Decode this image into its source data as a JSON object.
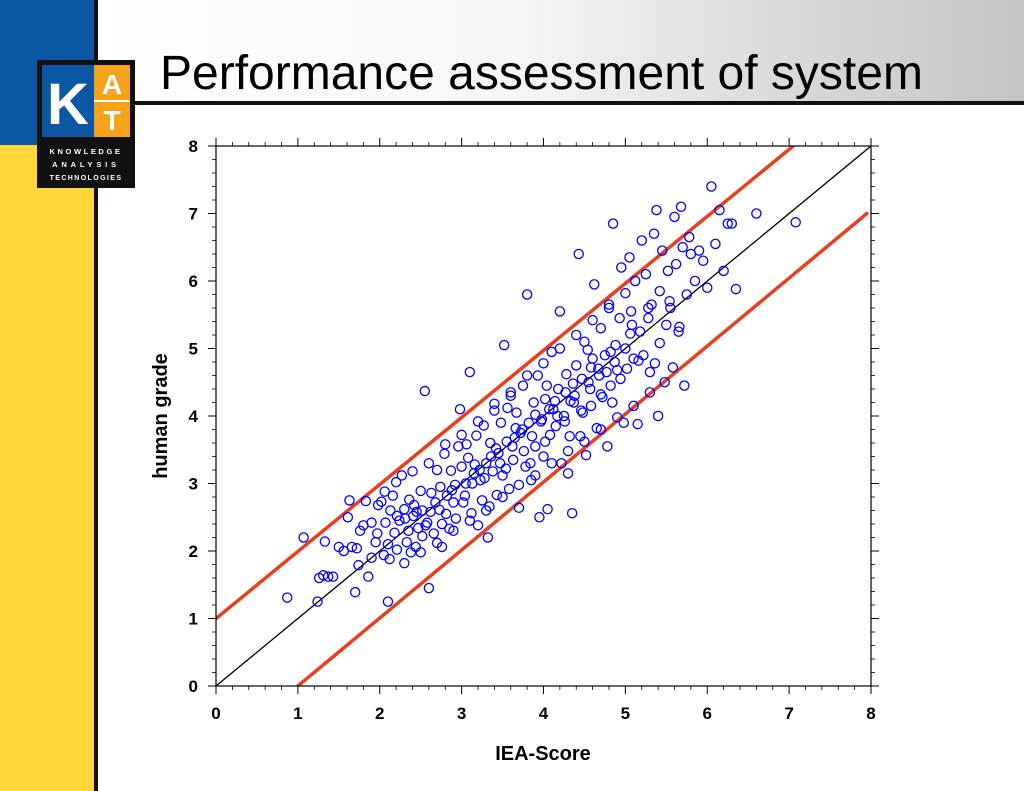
{
  "slide": {
    "title": "Performance assessment of system"
  },
  "logo": {
    "letter_k": "K",
    "letter_a": "A",
    "letter_t": "T",
    "line1": "KNOWLEDGE",
    "line2": "ANALYSIS",
    "line3": "TECHNOLOGIES"
  },
  "colors": {
    "sidebar_blue": "#0B57A4",
    "sidebar_yellow": "#FFD63A",
    "logo_orange": "#F5A31A",
    "points": "#0000FF",
    "bound_lines": "#E8401C",
    "identity_line": "#000000"
  },
  "chart_data": {
    "type": "scatter",
    "title": "",
    "xlabel": "IEA-Score",
    "ylabel": "human grade",
    "xlim": [
      0,
      8
    ],
    "ylim": [
      0,
      8
    ],
    "x_ticks": [
      0,
      1,
      2,
      3,
      4,
      5,
      6,
      7,
      8
    ],
    "y_ticks": [
      0,
      1,
      2,
      3,
      4,
      5,
      6,
      7,
      8
    ],
    "grid": false,
    "marker": "open-circle",
    "lines": [
      {
        "label": "identity y = x",
        "points": [
          [
            0,
            0
          ],
          [
            8,
            8
          ]
        ],
        "color": "#000000"
      },
      {
        "label": "upper bound y = x + 1",
        "points": [
          [
            0,
            1
          ],
          [
            7.05,
            8
          ]
        ],
        "color": "#E8401C"
      },
      {
        "label": "lower bound y = x - 1",
        "points": [
          [
            1,
            0
          ],
          [
            7.95,
            7
          ]
        ],
        "color": "#E8401C"
      }
    ],
    "series": [
      {
        "points": [
          [
            0.87,
            1.31
          ],
          [
            1.07,
            2.2
          ],
          [
            1.24,
            1.25
          ],
          [
            1.26,
            1.6
          ],
          [
            1.31,
            1.64
          ],
          [
            1.33,
            2.14
          ],
          [
            1.37,
            1.62
          ],
          [
            1.43,
            1.62
          ],
          [
            1.5,
            2.06
          ],
          [
            1.61,
            2.5
          ],
          [
            1.63,
            2.75
          ],
          [
            1.66,
            2.06
          ],
          [
            1.7,
            1.39
          ],
          [
            1.72,
            2.04
          ],
          [
            1.76,
            2.3
          ],
          [
            1.8,
            2.38
          ],
          [
            1.83,
            2.74
          ],
          [
            1.86,
            1.62
          ],
          [
            1.9,
            2.42
          ],
          [
            1.9,
            1.9
          ],
          [
            1.95,
            2.13
          ],
          [
            1.97,
            2.26
          ],
          [
            2.02,
            2.73
          ],
          [
            2.05,
            1.94
          ],
          [
            2.07,
            2.42
          ],
          [
            2.1,
            2.1
          ],
          [
            2.1,
            1.25
          ],
          [
            2.13,
            2.6
          ],
          [
            2.16,
            2.82
          ],
          [
            2.18,
            2.27
          ],
          [
            2.21,
            2.02
          ],
          [
            2.24,
            2.45
          ],
          [
            2.27,
            3.12
          ],
          [
            2.3,
            2.62
          ],
          [
            2.33,
            2.13
          ],
          [
            2.36,
            2.76
          ],
          [
            2.38,
            1.98
          ],
          [
            2.41,
            2.52
          ],
          [
            2.44,
            2.06
          ],
          [
            2.47,
            2.34
          ],
          [
            2.5,
            2.89
          ],
          [
            2.52,
            2.6
          ],
          [
            2.55,
            4.37
          ],
          [
            2.58,
            2.42
          ],
          [
            2.6,
            1.45
          ],
          [
            2.63,
            2.86
          ],
          [
            2.66,
            2.26
          ],
          [
            2.7,
            3.2
          ],
          [
            2.73,
            2.61
          ],
          [
            2.76,
            2.06
          ],
          [
            2.79,
            3.44
          ],
          [
            2.82,
            2.82
          ],
          [
            2.85,
            2.33
          ],
          [
            2.87,
            3.19
          ],
          [
            2.9,
            2.72
          ],
          [
            2.93,
            2.48
          ],
          [
            2.96,
            3.55
          ],
          [
            2.98,
            4.1
          ],
          [
            3.0,
            3.25
          ],
          [
            3.02,
            2.72
          ],
          [
            3.05,
            3.0
          ],
          [
            3.08,
            3.38
          ],
          [
            3.1,
            4.65
          ],
          [
            3.12,
            2.56
          ],
          [
            3.15,
            3.15
          ],
          [
            3.18,
            3.71
          ],
          [
            3.2,
            2.38
          ],
          [
            3.23,
            3.05
          ],
          [
            3.25,
            2.75
          ],
          [
            3.27,
            3.86
          ],
          [
            3.3,
            3.3
          ],
          [
            3.32,
            2.2
          ],
          [
            3.35,
            3.6
          ],
          [
            3.38,
            3.18
          ],
          [
            3.4,
            4.08
          ],
          [
            3.43,
            2.83
          ],
          [
            3.45,
            3.45
          ],
          [
            3.48,
            3.9
          ],
          [
            3.5,
            3.12
          ],
          [
            3.52,
            5.05
          ],
          [
            3.55,
            3.62
          ],
          [
            3.58,
            2.92
          ],
          [
            3.6,
            4.3
          ],
          [
            3.63,
            3.35
          ],
          [
            3.65,
            3.68
          ],
          [
            3.67,
            4.05
          ],
          [
            3.7,
            2.64
          ],
          [
            3.72,
            3.75
          ],
          [
            3.75,
            4.45
          ],
          [
            3.78,
            3.25
          ],
          [
            3.8,
            5.8
          ],
          [
            3.82,
            3.9
          ],
          [
            3.85,
            3.05
          ],
          [
            3.88,
            4.2
          ],
          [
            3.9,
            3.55
          ],
          [
            3.93,
            4.6
          ],
          [
            3.95,
            2.5
          ],
          [
            3.98,
            3.95
          ],
          [
            4.0,
            3.4
          ],
          [
            4.02,
            4.25
          ],
          [
            4.05,
            2.62
          ],
          [
            4.08,
            3.72
          ],
          [
            4.1,
            4.95
          ],
          [
            4.12,
            4.1
          ],
          [
            4.15,
            3.85
          ],
          [
            4.18,
            4.4
          ],
          [
            4.2,
            5.55
          ],
          [
            4.22,
            3.3
          ],
          [
            4.25,
            4.0
          ],
          [
            4.28,
            4.62
          ],
          [
            4.3,
            3.15
          ],
          [
            4.33,
            4.22
          ],
          [
            4.35,
            2.56
          ],
          [
            4.38,
            4.3
          ],
          [
            4.4,
            4.75
          ],
          [
            4.43,
            6.4
          ],
          [
            4.45,
            3.7
          ],
          [
            4.48,
            4.05
          ],
          [
            4.5,
            5.1
          ],
          [
            4.52,
            3.42
          ],
          [
            4.55,
            4.5
          ],
          [
            4.58,
            4.15
          ],
          [
            4.6,
            4.85
          ],
          [
            4.62,
            5.95
          ],
          [
            4.65,
            3.82
          ],
          [
            4.68,
            4.6
          ],
          [
            4.7,
            5.3
          ],
          [
            4.72,
            4.28
          ],
          [
            4.75,
            4.9
          ],
          [
            4.78,
            3.55
          ],
          [
            4.8,
            5.65
          ],
          [
            4.82,
            4.45
          ],
          [
            4.85,
            6.85
          ],
          [
            4.88,
            5.05
          ],
          [
            4.9,
            4.68
          ],
          [
            4.93,
            5.45
          ],
          [
            4.95,
            6.2
          ],
          [
            4.98,
            3.9
          ],
          [
            5.0,
            5.0
          ],
          [
            5.02,
            4.7
          ],
          [
            5.05,
            6.35
          ],
          [
            5.07,
            5.55
          ],
          [
            5.1,
            4.85
          ],
          [
            5.12,
            6.0
          ],
          [
            5.15,
            3.88
          ],
          [
            5.18,
            5.25
          ],
          [
            5.2,
            6.6
          ],
          [
            5.22,
            4.9
          ],
          [
            5.25,
            6.1
          ],
          [
            5.28,
            5.6
          ],
          [
            5.3,
            4.65
          ],
          [
            5.32,
            5.65
          ],
          [
            5.35,
            6.7
          ],
          [
            5.38,
            7.05
          ],
          [
            5.4,
            4.0
          ],
          [
            5.42,
            5.85
          ],
          [
            5.45,
            6.45
          ],
          [
            5.48,
            4.5
          ],
          [
            5.5,
            5.35
          ],
          [
            5.52,
            6.15
          ],
          [
            5.55,
            5.6
          ],
          [
            5.58,
            4.72
          ],
          [
            5.6,
            6.95
          ],
          [
            5.62,
            6.25
          ],
          [
            5.65,
            5.25
          ],
          [
            5.68,
            7.1
          ],
          [
            5.7,
            6.5
          ],
          [
            5.72,
            4.45
          ],
          [
            5.75,
            5.8
          ],
          [
            5.78,
            6.65
          ],
          [
            5.8,
            6.4
          ],
          [
            5.85,
            6.0
          ],
          [
            5.9,
            6.45
          ],
          [
            5.95,
            6.3
          ],
          [
            6.0,
            5.9
          ],
          [
            6.05,
            7.4
          ],
          [
            6.1,
            6.55
          ],
          [
            6.15,
            7.05
          ],
          [
            6.2,
            6.15
          ],
          [
            6.25,
            6.85
          ],
          [
            6.3,
            6.85
          ],
          [
            6.35,
            5.88
          ],
          [
            6.6,
            7.0
          ],
          [
            7.08,
            6.87
          ],
          [
            2.35,
            2.3
          ],
          [
            2.42,
            2.68
          ],
          [
            2.62,
            2.58
          ],
          [
            2.74,
            2.95
          ],
          [
            2.88,
            2.9
          ],
          [
            3.13,
            3.0
          ],
          [
            3.22,
            3.2
          ],
          [
            3.36,
            3.4
          ],
          [
            3.47,
            3.3
          ],
          [
            3.62,
            3.55
          ],
          [
            3.74,
            3.8
          ],
          [
            3.86,
            3.7
          ],
          [
            3.97,
            3.92
          ],
          [
            4.07,
            4.1
          ],
          [
            4.17,
            4.0
          ],
          [
            4.27,
            4.35
          ],
          [
            4.37,
            4.2
          ],
          [
            4.47,
            4.55
          ],
          [
            4.57,
            4.4
          ],
          [
            4.67,
            4.7
          ],
          [
            4.77,
            4.65
          ],
          [
            4.87,
            4.8
          ],
          [
            2.21,
            2.52
          ],
          [
            2.31,
            2.48
          ],
          [
            2.45,
            2.58
          ],
          [
            2.56,
            2.38
          ],
          [
            2.68,
            2.72
          ],
          [
            2.81,
            2.55
          ],
          [
            2.92,
            2.98
          ],
          [
            3.04,
            2.82
          ],
          [
            3.16,
            3.28
          ],
          [
            3.28,
            3.08
          ],
          [
            3.42,
            3.52
          ],
          [
            3.54,
            3.22
          ],
          [
            3.66,
            3.82
          ],
          [
            3.76,
            3.48
          ],
          [
            3.9,
            4.02
          ],
          [
            4.02,
            3.62
          ],
          [
            4.14,
            4.22
          ],
          [
            4.26,
            3.92
          ],
          [
            4.36,
            4.48
          ],
          [
            4.46,
            4.08
          ],
          [
            4.58,
            4.72
          ],
          [
            4.7,
            4.32
          ],
          [
            4.82,
            4.95
          ],
          [
            4.94,
            4.55
          ],
          [
            5.06,
            5.22
          ],
          [
            5.16,
            4.82
          ],
          [
            5.28,
            5.45
          ],
          [
            5.42,
            5.08
          ],
          [
            5.54,
            5.7
          ],
          [
            5.66,
            5.32
          ],
          [
            2.06,
            2.88
          ],
          [
            2.2,
            3.02
          ],
          [
            2.4,
            3.18
          ],
          [
            2.6,
            3.3
          ],
          [
            2.8,
            3.58
          ],
          [
            3.0,
            3.72
          ],
          [
            3.2,
            3.92
          ],
          [
            3.4,
            4.18
          ],
          [
            3.6,
            4.35
          ],
          [
            3.8,
            4.6
          ],
          [
            4.0,
            4.78
          ],
          [
            4.2,
            5.0
          ],
          [
            4.4,
            5.2
          ],
          [
            4.6,
            5.42
          ],
          [
            4.8,
            5.6
          ],
          [
            5.0,
            5.82
          ],
          [
            2.3,
            1.82
          ],
          [
            2.5,
            1.98
          ],
          [
            2.7,
            2.12
          ],
          [
            2.9,
            2.3
          ],
          [
            3.1,
            2.45
          ],
          [
            3.3,
            2.6
          ],
          [
            3.5,
            2.8
          ],
          [
            3.7,
            2.98
          ],
          [
            3.9,
            3.12
          ],
          [
            4.1,
            3.3
          ],
          [
            4.3,
            3.48
          ],
          [
            4.5,
            3.62
          ],
          [
            4.7,
            3.8
          ],
          [
            4.9,
            3.98
          ],
          [
            5.1,
            4.15
          ],
          [
            5.3,
            4.35
          ],
          [
            1.56,
            2.0
          ],
          [
            1.74,
            1.79
          ],
          [
            1.98,
            2.68
          ],
          [
            2.12,
            1.88
          ],
          [
            2.52,
            2.22
          ],
          [
            2.76,
            2.4
          ],
          [
            3.06,
            3.58
          ],
          [
            3.34,
            2.66
          ],
          [
            3.56,
            4.12
          ],
          [
            3.84,
            3.3
          ],
          [
            4.04,
            4.45
          ],
          [
            4.32,
            3.7
          ],
          [
            4.54,
            4.98
          ],
          [
            4.84,
            4.2
          ],
          [
            5.08,
            5.35
          ],
          [
            5.36,
            4.78
          ]
        ]
      }
    ]
  }
}
